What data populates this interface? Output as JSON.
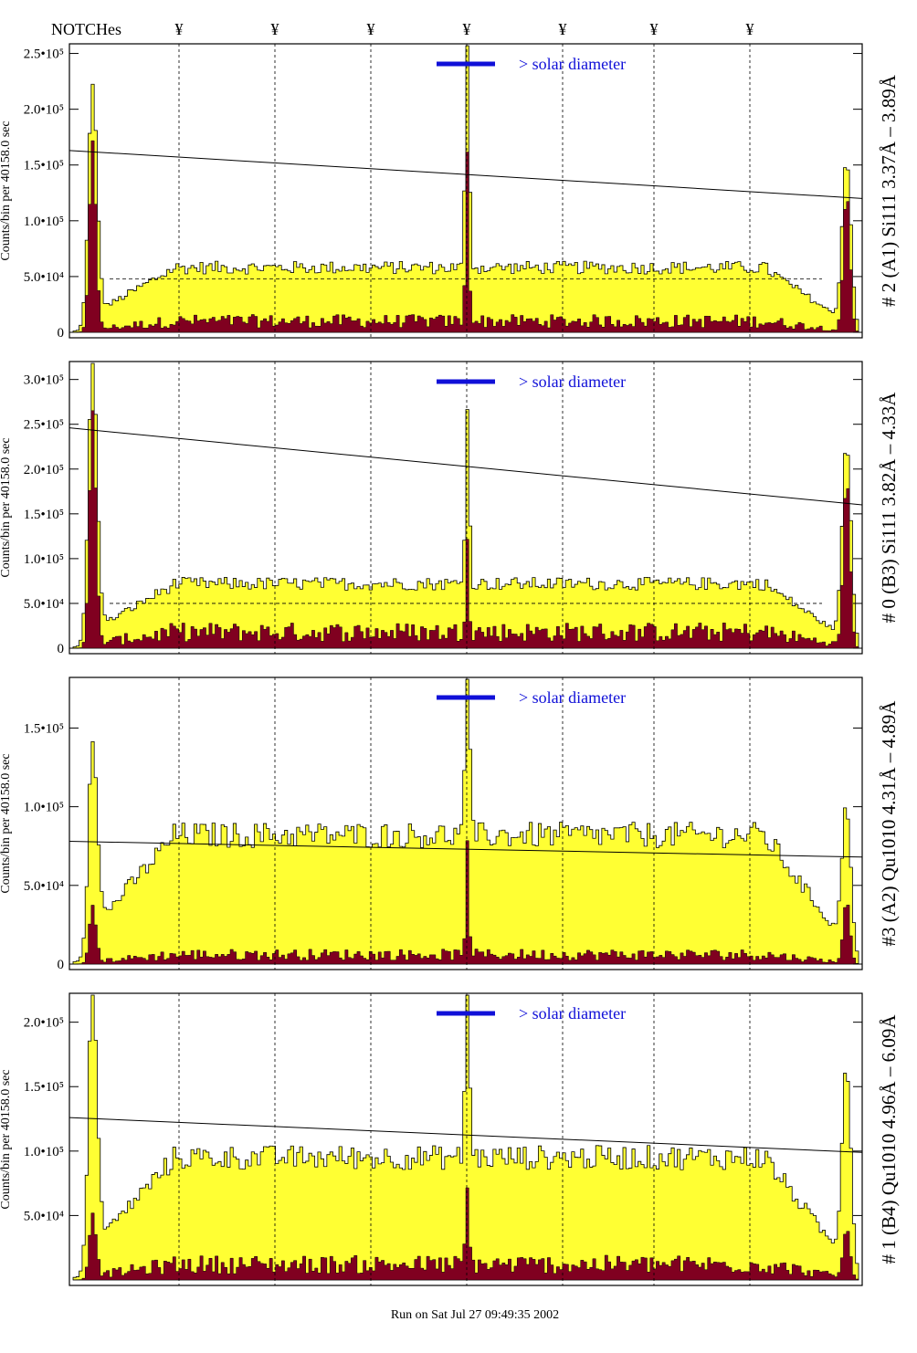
{
  "header": {
    "notches_label": "NOTCHes",
    "notch_symbol": "¥",
    "notch_positions": [
      196,
      301,
      406,
      511,
      616,
      716,
      821
    ]
  },
  "footer": {
    "run_text": "Run on Sat Jul 27 09:49:35 2002"
  },
  "colors": {
    "fill_total": "#ffff33",
    "fill_sub": "#800020",
    "solar_bar": "#1010d8",
    "frame": "#000000"
  },
  "chart_data": [
    {
      "type": "bar",
      "title": "",
      "side_label": "# 2 (A1) Si111  3.37Å – 3.89Å",
      "ylabel": "Counts/bin per  40158.0 sec",
      "solar_label": "> solar diameter",
      "yticks": [
        "0",
        "5.0•10⁴",
        "1.0•10⁵",
        "1.5•10⁵",
        "2.0•10⁵",
        "2.5•10⁵"
      ],
      "ytick_values": [
        0,
        50000,
        100000,
        150000,
        200000,
        250000
      ],
      "ylim": [
        0,
        257000
      ],
      "x": {
        "bins": 260
      },
      "shape": {
        "plateau": 58000,
        "sub": 10000,
        "peak_left": 205000,
        "peak_center": 228000,
        "peak_right": 150000,
        "sub_peak_left": 170000,
        "sub_peak_center": 155000,
        "sub_peak_right": 125000
      },
      "fit_line": [
        163000,
        120000
      ],
      "dashed_level": 48000
    },
    {
      "type": "bar",
      "title": "",
      "side_label": "# 0 (B3) Si111  3.82Å – 4.33Å",
      "ylabel": "Counts/bin per  40158.0 sec",
      "solar_label": "> solar diameter",
      "yticks": [
        "0",
        "5.0•10⁴",
        "1.0•10⁵",
        "1.5•10⁵",
        "2.0•10⁵",
        "2.5•10⁵",
        "3.0•10⁵"
      ],
      "ytick_values": [
        0,
        50000,
        100000,
        150000,
        200000,
        250000,
        300000
      ],
      "ylim": [
        0,
        318000
      ],
      "x": {
        "bins": 260
      },
      "shape": {
        "plateau": 72000,
        "sub": 18000,
        "peak_left": 300000,
        "peak_center": 195000,
        "peak_right": 222000,
        "sub_peak_left": 258000,
        "sub_peak_center": 110000,
        "sub_peak_right": 190000
      },
      "fit_line": [
        246000,
        160000
      ],
      "dashed_level": 50000
    },
    {
      "type": "bar",
      "title": "",
      "side_label": "#3 (A2) Qu1010  4.31Å – 4.89Å",
      "ylabel": "Counts/bin per  40158.0 sec",
      "solar_label": "> solar diameter",
      "yticks": [
        "0",
        "5.0•10⁴",
        "1.0•10⁵",
        "1.5•10⁵"
      ],
      "ytick_values": [
        0,
        50000,
        100000,
        150000
      ],
      "ylim": [
        0,
        181000
      ],
      "x": {
        "bins": 260
      },
      "shape": {
        "plateau": 82000,
        "sub": 6000,
        "peak_left": 120000,
        "peak_center": 162000,
        "peak_right": 94000,
        "sub_peak_left": 36000,
        "sub_peak_center": 70000,
        "sub_peak_right": 40000
      },
      "fit_line": [
        78000,
        68000
      ],
      "dashed_level": 0
    },
    {
      "type": "bar",
      "title": "",
      "side_label": "# 1 (B4) Qu1010 4.96Å – 6.09Å",
      "ylabel": "Counts/bin per  40158.0 sec",
      "solar_label": "> solar diameter",
      "yticks": [
        "5.0•10⁴",
        "1.0•10⁵",
        "1.5•10⁵",
        "2.0•10⁵"
      ],
      "ytick_values": [
        50000,
        100000,
        150000,
        200000
      ],
      "ylim": [
        0,
        221000
      ],
      "x": {
        "bins": 260
      },
      "shape": {
        "plateau": 95000,
        "sub": 12000,
        "peak_left": 200000,
        "peak_center": 170000,
        "peak_right": 158000,
        "sub_peak_left": 50000,
        "sub_peak_center": 60000,
        "sub_peak_right": 40000
      },
      "fit_line": [
        126000,
        99000
      ],
      "dashed_level": 0
    }
  ]
}
